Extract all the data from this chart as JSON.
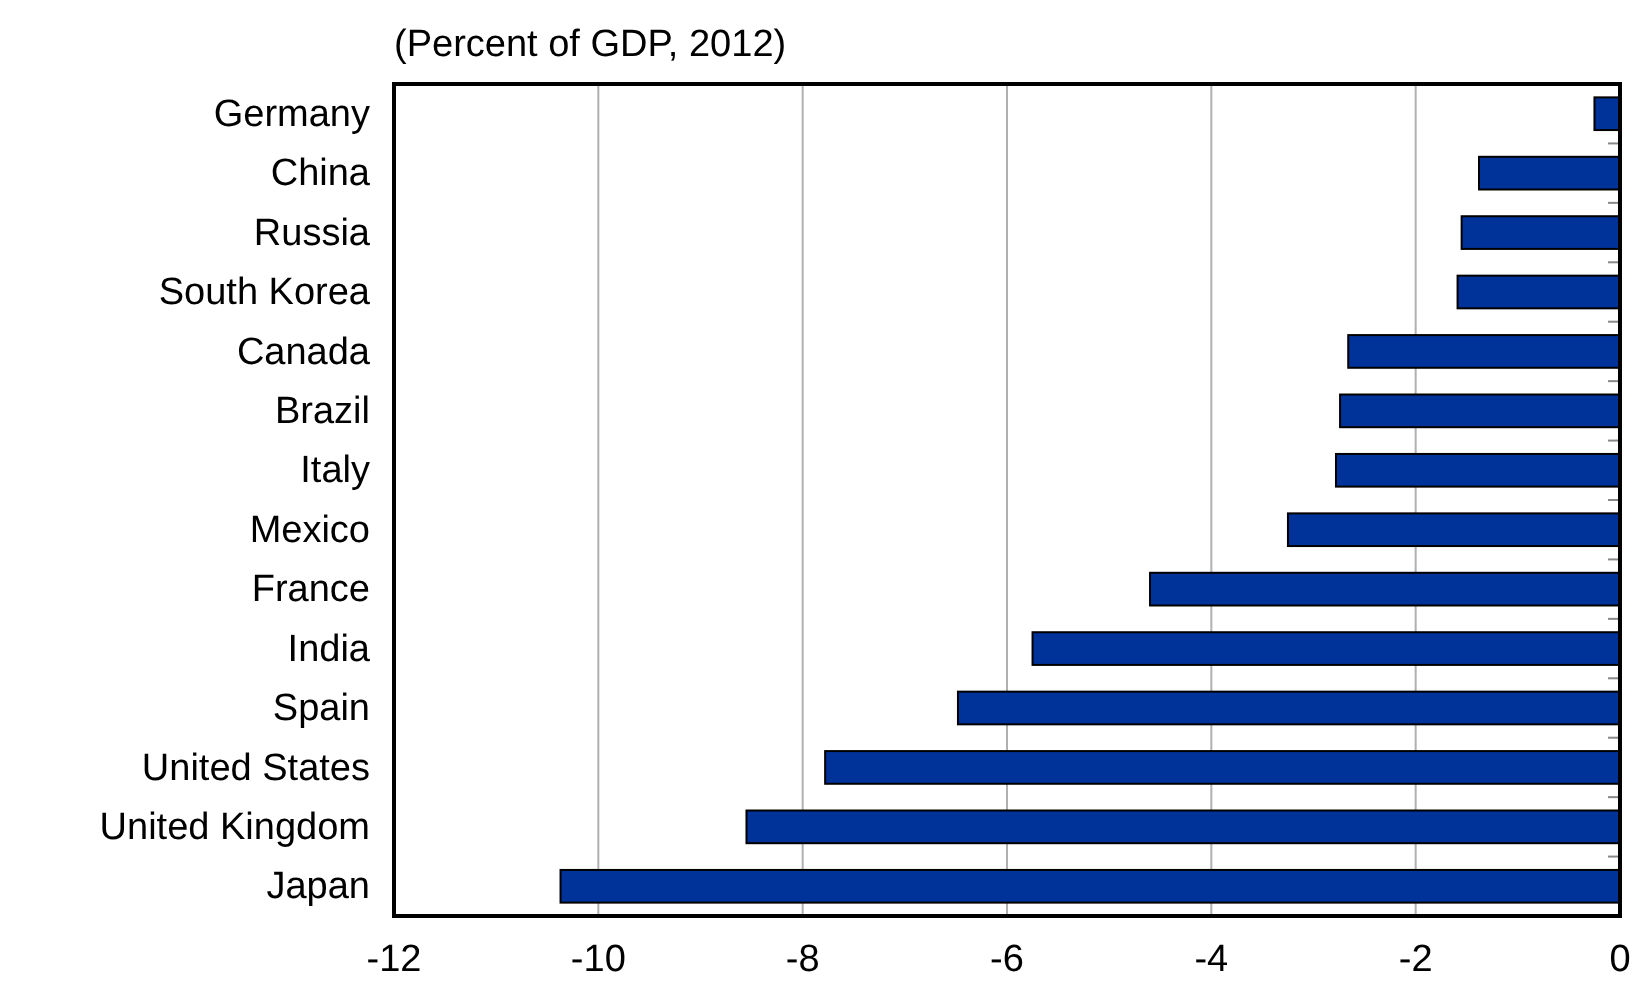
{
  "chart_data": {
    "type": "bar",
    "orientation": "horizontal",
    "title": "(Percent of GDP, 2012)",
    "categories": [
      "Germany",
      "China",
      "Russia",
      "South Korea",
      "Canada",
      "Brazil",
      "Italy",
      "Mexico",
      "France",
      "India",
      "Spain",
      "United States",
      "United Kingdom",
      "Japan"
    ],
    "values": [
      -0.25,
      -1.38,
      -1.55,
      -1.59,
      -2.66,
      -2.74,
      -2.78,
      -3.25,
      -4.6,
      -5.75,
      -6.48,
      -7.78,
      -8.55,
      -10.37
    ],
    "color": "#003399",
    "xlim": [
      -12,
      0
    ],
    "xticks": [
      -12,
      -10,
      -8,
      -6,
      -4,
      -2,
      0
    ],
    "grid": "x"
  }
}
